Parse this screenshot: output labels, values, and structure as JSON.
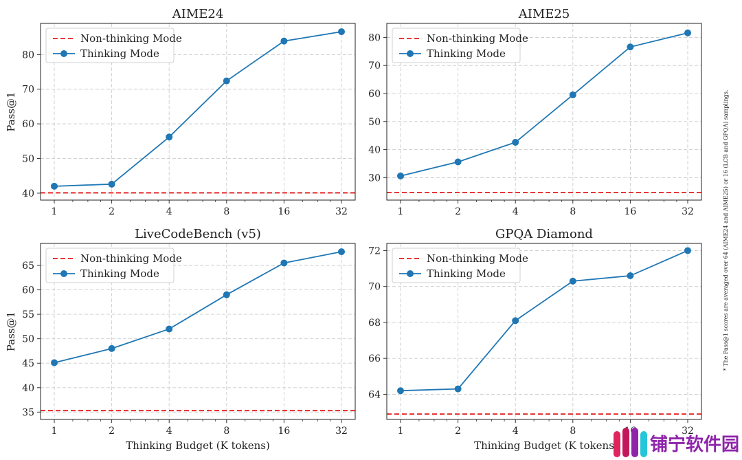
{
  "colors": {
    "thinking": "#1f77b4",
    "non_thinking": "#e41a1c",
    "grid": "#cccccc"
  },
  "footnote": "* The Pass@1 scores are averaged over 64 (AIME24 and AIME25) or 16 (LCB and GPQA) samplings.",
  "watermark": {
    "text": "铺宁软件园",
    "icon": "bars-logo-icon"
  },
  "chart_data": [
    {
      "type": "line",
      "title": "AIME24",
      "xlabel": "",
      "ylabel": "Pass@1",
      "x_scale": "log2",
      "categories": [
        "1",
        "2",
        "4",
        "8",
        "16",
        "32"
      ],
      "yticks": [
        40,
        50,
        60,
        70,
        80
      ],
      "ylim": [
        38,
        89
      ],
      "grid": true,
      "legend_position": "top-left",
      "series": [
        {
          "name": "Non-thinking Mode",
          "style": "dashed",
          "value": 40.1
        },
        {
          "name": "Thinking Mode",
          "style": "solid-marker",
          "values": [
            42.0,
            42.6,
            56.2,
            72.4,
            83.9,
            86.6
          ]
        }
      ]
    },
    {
      "type": "line",
      "title": "AIME25",
      "xlabel": "",
      "ylabel": "",
      "x_scale": "log2",
      "categories": [
        "1",
        "2",
        "4",
        "8",
        "16",
        "32"
      ],
      "yticks": [
        30,
        40,
        50,
        60,
        70,
        80
      ],
      "ylim": [
        22,
        85
      ],
      "grid": true,
      "legend_position": "top-left",
      "series": [
        {
          "name": "Non-thinking Mode",
          "style": "dashed",
          "value": 24.7
        },
        {
          "name": "Thinking Mode",
          "style": "solid-marker",
          "values": [
            30.6,
            35.6,
            42.6,
            59.5,
            76.6,
            81.6
          ]
        }
      ]
    },
    {
      "type": "line",
      "title": "LiveCodeBench (v5)",
      "xlabel": "Thinking Budget (K tokens)",
      "ylabel": "Pass@1",
      "x_scale": "log2",
      "categories": [
        "1",
        "2",
        "4",
        "8",
        "16",
        "32"
      ],
      "yticks": [
        35,
        40,
        45,
        50,
        55,
        60,
        65
      ],
      "ylim": [
        33.5,
        69.5
      ],
      "grid": true,
      "legend_position": "top-left",
      "series": [
        {
          "name": "Non-thinking Mode",
          "style": "dashed",
          "value": 35.3
        },
        {
          "name": "Thinking Mode",
          "style": "solid-marker",
          "values": [
            45.1,
            48.0,
            52.0,
            59.0,
            65.5,
            67.8
          ]
        }
      ]
    },
    {
      "type": "line",
      "title": "GPQA Diamond",
      "xlabel": "Thinking Budget (K tokens",
      "ylabel": "",
      "x_scale": "log2",
      "categories": [
        "1",
        "2",
        "4",
        "8",
        "16",
        "32"
      ],
      "yticks": [
        64,
        66,
        68,
        70,
        72
      ],
      "ylim": [
        62.6,
        72.4
      ],
      "grid": true,
      "legend_position": "top-left",
      "series": [
        {
          "name": "Non-thinking Mode",
          "style": "dashed",
          "value": 62.9
        },
        {
          "name": "Thinking Mode",
          "style": "solid-marker",
          "values": [
            64.2,
            64.3,
            68.1,
            70.3,
            70.6,
            72.0
          ]
        }
      ]
    }
  ]
}
